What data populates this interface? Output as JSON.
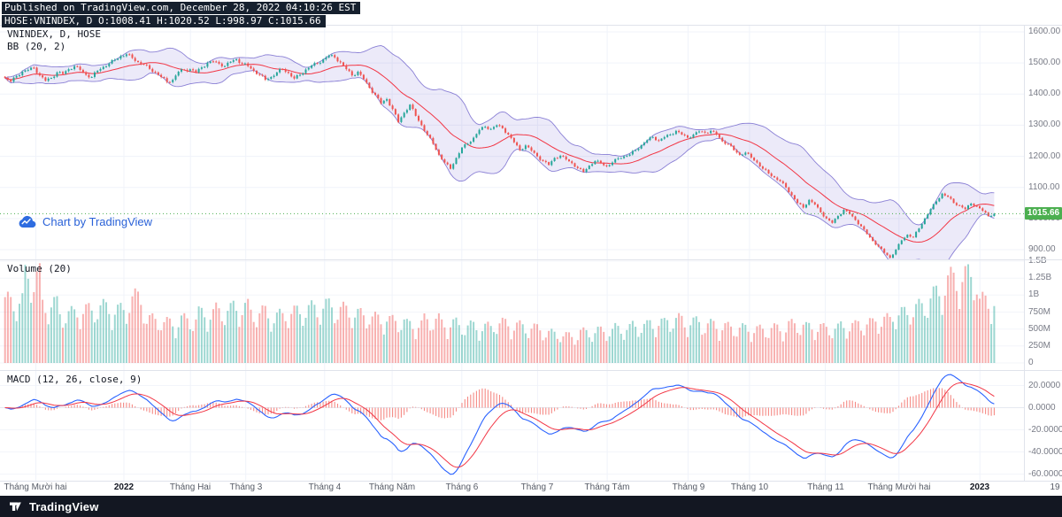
{
  "header": {
    "published": "Published on TradingView.com, December 28, 2022 04:10:26 EST",
    "symbol_ohlc": "HOSE:VNINDEX, D O:1008.41 H:1020.52 L:998.97 C:1015.66"
  },
  "main_pane": {
    "legend_symbol": "VNINDEX, D, HOSE",
    "legend_bb": "BB (20, 2)",
    "watermark": "Chart by TradingView",
    "last_price_label": "1015.66",
    "price_ticks": [
      {
        "label": "1600.00",
        "value": 1600
      },
      {
        "label": "1500.00",
        "value": 1500
      },
      {
        "label": "1400.00",
        "value": 1400
      },
      {
        "label": "1300.00",
        "value": 1300
      },
      {
        "label": "1200.00",
        "value": 1200
      },
      {
        "label": "1100.00",
        "value": 1100
      },
      {
        "label": "1000.00",
        "value": 1000
      },
      {
        "label": "900.00",
        "value": 900
      }
    ]
  },
  "volume_pane": {
    "legend": "Volume (20)",
    "ticks": [
      {
        "label": "1.5B",
        "value": 1500
      },
      {
        "label": "1.25B",
        "value": 1250
      },
      {
        "label": "1B",
        "value": 1000
      },
      {
        "label": "750M",
        "value": 750
      },
      {
        "label": "500M",
        "value": 500
      },
      {
        "label": "250M",
        "value": 250
      },
      {
        "label": "0",
        "value": 0
      }
    ]
  },
  "macd_pane": {
    "legend": "MACD (12, 26, close, 9)",
    "ticks": [
      {
        "label": "20.0000",
        "value": 20
      },
      {
        "label": "0.0000",
        "value": 0
      },
      {
        "label": "-20.0000",
        "value": -20
      },
      {
        "label": "-40.0000",
        "value": -40
      },
      {
        "label": "-60.0000",
        "value": -60
      }
    ]
  },
  "time_axis": {
    "labels": [
      {
        "t": "Tháng Mười hai",
        "x": 0.035
      },
      {
        "t": "2022",
        "x": 0.121,
        "year": true
      },
      {
        "t": "Tháng Hai",
        "x": 0.186
      },
      {
        "t": "Tháng 3",
        "x": 0.24
      },
      {
        "t": "Tháng 4",
        "x": 0.317
      },
      {
        "t": "Tháng Năm",
        "x": 0.383
      },
      {
        "t": "Tháng 6",
        "x": 0.451
      },
      {
        "t": "Tháng 7",
        "x": 0.525
      },
      {
        "t": "Tháng Tám",
        "x": 0.593
      },
      {
        "t": "Tháng 9",
        "x": 0.672
      },
      {
        "t": "Tháng 10",
        "x": 0.732
      },
      {
        "t": "Tháng 11",
        "x": 0.806
      },
      {
        "t": "Tháng Mười hai",
        "x": 0.878
      },
      {
        "t": "2023",
        "x": 0.957,
        "year": true
      },
      {
        "t": "19",
        "x": 1.03
      }
    ]
  },
  "footer": {
    "brand": "TradingView"
  },
  "chart_data": {
    "type": "candlestick",
    "symbol": "VNINDEX",
    "exchange": "HOSE",
    "interval": "D",
    "x_range": [
      "Nov 2021",
      "Jan 2023"
    ],
    "price_axis_range": [
      900,
      1600
    ],
    "volume_axis_range_m": [
      0,
      1500
    ],
    "macd_axis_range": [
      -66,
      34
    ],
    "ohlc_last": {
      "o": 1008.41,
      "h": 1020.52,
      "l": 998.97,
      "c": 1015.66
    },
    "indicators": {
      "bollinger": {
        "period": 20,
        "mult": 2
      },
      "volume_ma": 20,
      "macd": {
        "fast": 12,
        "slow": 26,
        "source": "close",
        "signal": 9
      }
    },
    "close_anchors": [
      1452,
      1440,
      1458,
      1472,
      1478,
      1485,
      1460,
      1443,
      1452,
      1470,
      1465,
      1480,
      1490,
      1478,
      1462,
      1455,
      1475,
      1488,
      1498,
      1510,
      1522,
      1528,
      1516,
      1503,
      1495,
      1481,
      1470,
      1455,
      1439,
      1446,
      1472,
      1478,
      1480,
      1470,
      1486,
      1500,
      1505,
      1498,
      1490,
      1504,
      1512,
      1498,
      1490,
      1475,
      1462,
      1446,
      1455,
      1470,
      1480,
      1468,
      1450,
      1462,
      1479,
      1492,
      1498,
      1512,
      1524,
      1518,
      1502,
      1480,
      1460,
      1472,
      1448,
      1420,
      1398,
      1370,
      1384,
      1352,
      1310,
      1340,
      1366,
      1330,
      1300,
      1269,
      1240,
      1205,
      1180,
      1160,
      1195,
      1228,
      1240,
      1260,
      1285,
      1295,
      1288,
      1300,
      1290,
      1270,
      1245,
      1220,
      1235,
      1218,
      1200,
      1185,
      1172,
      1195,
      1202,
      1190,
      1178,
      1162,
      1150,
      1170,
      1185,
      1178,
      1168,
      1180,
      1194,
      1200,
      1206,
      1220,
      1236,
      1252,
      1262,
      1250,
      1262,
      1270,
      1282,
      1270,
      1260,
      1270,
      1280,
      1276,
      1282,
      1270,
      1248,
      1240,
      1220,
      1205,
      1212,
      1196,
      1180,
      1160,
      1145,
      1132,
      1120,
      1100,
      1075,
      1050,
      1035,
      1060,
      1045,
      1020,
      1000,
      986,
      1008,
      1028,
      1015,
      995,
      975,
      950,
      928,
      910,
      890,
      874,
      900,
      930,
      948,
      940,
      968,
      1000,
      1030,
      1055,
      1080,
      1070,
      1050,
      1042,
      1030,
      1048,
      1040,
      1025,
      1008,
      1015.66
    ],
    "volume_anchors_m": [
      1000,
      1400,
      950,
      800,
      850,
      900,
      850,
      1050,
      700,
      650,
      700,
      800,
      850,
      900,
      820,
      760,
      820,
      880,
      920,
      860,
      780,
      720,
      680,
      620,
      700,
      640,
      600,
      580,
      640,
      600,
      560,
      480,
      440,
      500,
      520,
      560,
      600,
      640,
      700,
      660,
      620,
      580,
      560,
      540,
      560,
      620,
      580,
      560,
      600,
      640,
      700,
      800,
      900,
      1100,
      1350,
      1400,
      1000
    ],
    "colors": {
      "up": "#26a69a",
      "down": "#ef5350",
      "vol_up": "rgba(38,166,154,0.45)",
      "vol_down": "rgba(239,83,80,0.45)",
      "bb_fill": "rgba(98,83,202,0.12)",
      "bb_line": "#5d4fc4",
      "bb_basis": "#f23645",
      "macd_line": "#2962ff",
      "macd_signal": "#f23645",
      "hist": "rgba(242,99,92,0.75)",
      "last_price": "#4caf50"
    }
  }
}
